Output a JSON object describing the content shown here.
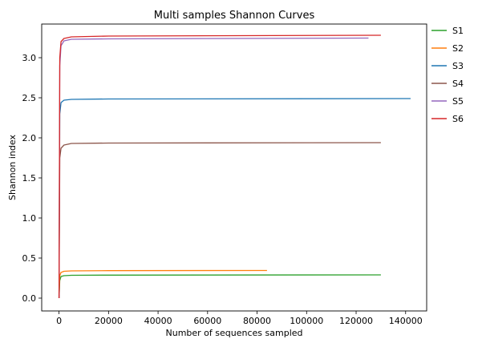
{
  "chart_data": {
    "type": "line",
    "title": "Multi samples Shannon Curves",
    "xlabel": "Number of sequences sampled",
    "ylabel": "Shannon index",
    "xlim": [
      -7000,
      148500
    ],
    "ylim": [
      -0.16,
      3.42
    ],
    "xticks": [
      0,
      20000,
      40000,
      60000,
      80000,
      100000,
      120000,
      140000
    ],
    "xtick_labels": [
      "0",
      "20000",
      "40000",
      "60000",
      "80000",
      "100000",
      "120000",
      "140000"
    ],
    "yticks": [
      0.0,
      0.5,
      1.0,
      1.5,
      2.0,
      2.5,
      3.0
    ],
    "ytick_labels": [
      "0.0",
      "0.5",
      "1.0",
      "1.5",
      "2.0",
      "2.5",
      "3.0"
    ],
    "grid": false,
    "legend_position": "outside-right-top",
    "series": [
      {
        "name": "S1",
        "color": "#2ca02c",
        "x": [
          0,
          300,
          800,
          2000,
          5000,
          20000,
          130000
        ],
        "y": [
          0.0,
          0.22,
          0.27,
          0.28,
          0.285,
          0.287,
          0.29
        ]
      },
      {
        "name": "S2",
        "color": "#ff7f0e",
        "x": [
          0,
          300,
          800,
          2000,
          5000,
          20000,
          84000
        ],
        "y": [
          0.0,
          0.28,
          0.32,
          0.335,
          0.34,
          0.343,
          0.345
        ]
      },
      {
        "name": "S3",
        "color": "#1f77b4",
        "x": [
          0,
          300,
          800,
          2000,
          5000,
          20000,
          142000
        ],
        "y": [
          0.0,
          2.3,
          2.44,
          2.47,
          2.48,
          2.485,
          2.49
        ]
      },
      {
        "name": "S4",
        "color": "#8c564b",
        "x": [
          0,
          300,
          800,
          2000,
          5000,
          20000,
          130000
        ],
        "y": [
          0.0,
          1.75,
          1.87,
          1.91,
          1.93,
          1.935,
          1.94
        ]
      },
      {
        "name": "S5",
        "color": "#9467bd",
        "x": [
          0,
          300,
          800,
          2000,
          5000,
          20000,
          125000
        ],
        "y": [
          0.0,
          2.9,
          3.15,
          3.21,
          3.23,
          3.235,
          3.245
        ]
      },
      {
        "name": "S6",
        "color": "#d62728",
        "x": [
          0,
          300,
          800,
          2000,
          5000,
          20000,
          130000
        ],
        "y": [
          0.0,
          3.0,
          3.2,
          3.24,
          3.26,
          3.27,
          3.28
        ]
      }
    ]
  }
}
